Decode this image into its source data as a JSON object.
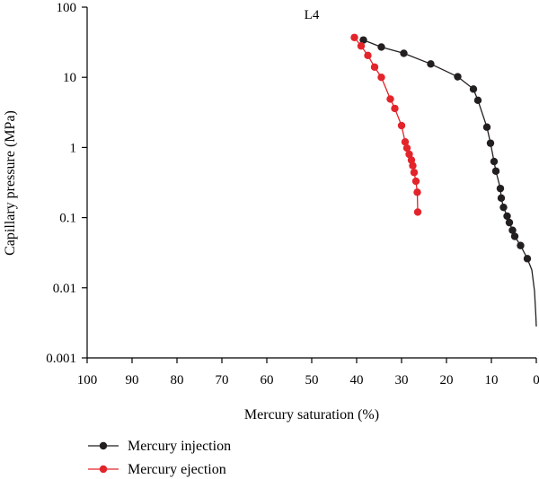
{
  "chart_data": {
    "type": "line",
    "title": "L4",
    "xlabel": "Mercury saturation (%)",
    "ylabel": "Capillary pressure (MPa)",
    "xlim": [
      100,
      0
    ],
    "ylim": [
      0.001,
      100
    ],
    "yscale": "log",
    "grid": false,
    "legend_position": "bottom-left",
    "x_ticks": [
      "100",
      "90",
      "80",
      "70",
      "60",
      "50",
      "40",
      "30",
      "20",
      "10",
      "0"
    ],
    "y_ticks": [
      "0.001",
      "0.01",
      "0.1",
      "1",
      "10",
      "100"
    ],
    "series": [
      {
        "name": "Mercury injection",
        "color": "#231f20",
        "points": [
          [
            38.5,
            34
          ],
          [
            34.5,
            27
          ],
          [
            29.5,
            22
          ],
          [
            23.5,
            15.5
          ],
          [
            17.5,
            10.2
          ],
          [
            14,
            6.8
          ],
          [
            13,
            4.7
          ],
          [
            11,
            1.95
          ],
          [
            10.2,
            1.15
          ],
          [
            9.4,
            0.63
          ],
          [
            9,
            0.46
          ],
          [
            8,
            0.26
          ],
          [
            7.8,
            0.19
          ],
          [
            7.3,
            0.14
          ],
          [
            6.5,
            0.105
          ],
          [
            6,
            0.085
          ],
          [
            5.3,
            0.066
          ],
          [
            4.8,
            0.054
          ],
          [
            3.5,
            0.04
          ],
          [
            2,
            0.026
          ]
        ],
        "curve_tail": [
          [
            1,
            0.018
          ],
          [
            0.4,
            0.009
          ],
          [
            0.1,
            0.004
          ],
          [
            0,
            0.0028
          ]
        ]
      },
      {
        "name": "Mercury ejection",
        "color": "#e3242b",
        "points": [
          [
            40.5,
            37
          ],
          [
            39,
            28
          ],
          [
            37.5,
            20.5
          ],
          [
            36,
            14
          ],
          [
            34.5,
            10
          ],
          [
            32.5,
            4.9
          ],
          [
            31.5,
            3.6
          ],
          [
            30,
            2.05
          ],
          [
            29.2,
            1.2
          ],
          [
            28.8,
            0.98
          ],
          [
            28.3,
            0.8
          ],
          [
            27.8,
            0.66
          ],
          [
            27.5,
            0.55
          ],
          [
            27.2,
            0.44
          ],
          [
            26.8,
            0.33
          ],
          [
            26.5,
            0.23
          ],
          [
            26.4,
            0.12
          ]
        ]
      }
    ]
  }
}
